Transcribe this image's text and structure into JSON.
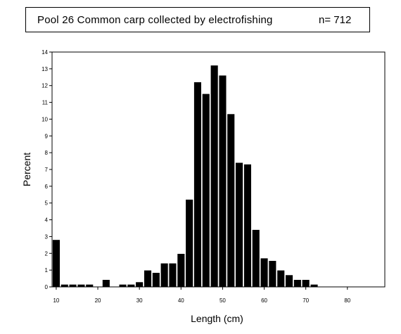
{
  "header": {
    "title": "Pool 26 Common carp collected by electrofishing",
    "n_label": "n= 712"
  },
  "chart_data": {
    "type": "bar",
    "title": "Pool 26 Common carp collected by electrofishing",
    "annotation": "n= 712",
    "xlabel": "Length (cm)",
    "ylabel": "Percent",
    "xlim": [
      9,
      89
    ],
    "ylim": [
      0,
      14
    ],
    "x_ticks": [
      10,
      20,
      30,
      40,
      50,
      60,
      70,
      80
    ],
    "y_ticks": [
      0,
      1,
      2,
      3,
      4,
      5,
      6,
      7,
      8,
      9,
      10,
      11,
      12,
      13,
      14
    ],
    "bar_width": 1.7,
    "x": [
      10,
      12,
      14,
      16,
      18,
      22,
      26,
      28,
      30,
      32,
      34,
      36,
      38,
      40,
      42,
      44,
      46,
      48,
      50,
      52,
      54,
      56,
      58,
      60,
      62,
      64,
      66,
      68,
      70,
      72
    ],
    "values": [
      2.8,
      0.14,
      0.14,
      0.14,
      0.14,
      0.42,
      0.14,
      0.14,
      0.28,
      0.98,
      0.84,
      1.4,
      1.4,
      1.97,
      5.2,
      12.2,
      11.5,
      13.2,
      12.6,
      10.3,
      7.4,
      7.3,
      3.4,
      1.7,
      1.55,
      0.98,
      0.7,
      0.42,
      0.42,
      0.14
    ],
    "grid": false,
    "legend": "none"
  }
}
